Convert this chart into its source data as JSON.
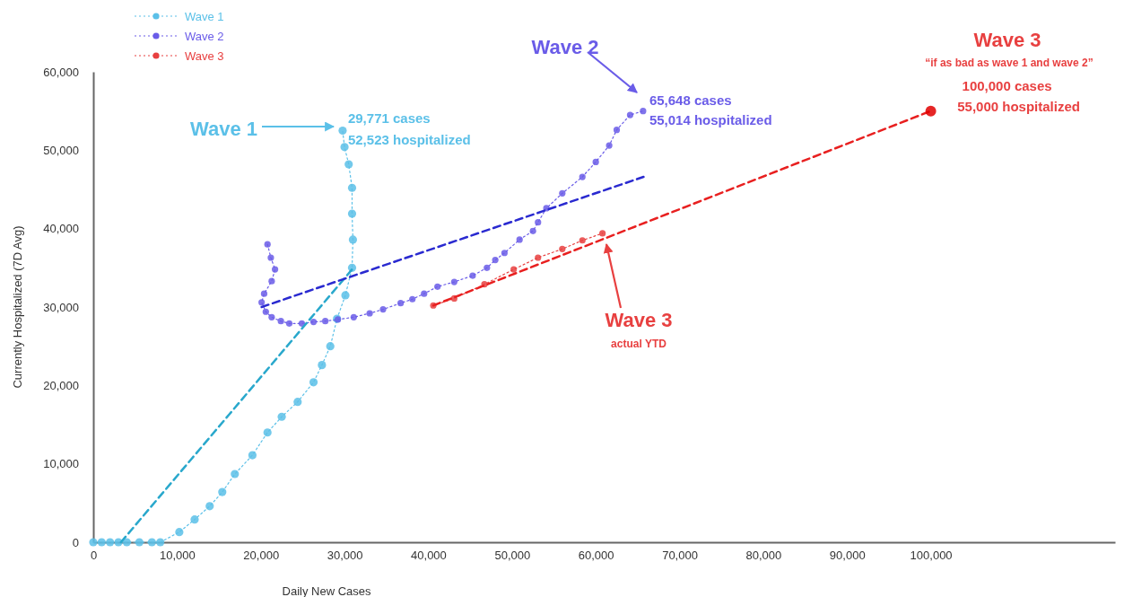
{
  "chart_data": {
    "type": "line",
    "xlabel": "Daily New Cases",
    "ylabel": "Currently Hospitalized (7D Avg)",
    "xlim": [
      0,
      122000
    ],
    "ylim": [
      0,
      60000
    ],
    "xticks": [
      0,
      {
        "value": 10000,
        "label": "10,000"
      },
      {
        "value": 20000,
        "label": "20,000"
      },
      {
        "value": 30000,
        "label": "30,000"
      },
      {
        "value": 40000,
        "label": "40,000"
      },
      {
        "value": 50000,
        "label": "50,000"
      },
      {
        "value": 60000,
        "label": "60,000"
      },
      {
        "value": 70000,
        "label": "70,000"
      },
      {
        "value": 80000,
        "label": "80,000"
      },
      {
        "value": 90000,
        "label": "90,000"
      },
      {
        "value": 100000,
        "label": "100,000"
      }
    ],
    "yticks": [
      0,
      {
        "value": 10000,
        "label": "10,000"
      },
      {
        "value": 20000,
        "label": "20,000"
      },
      {
        "value": 30000,
        "label": "30,000"
      },
      {
        "value": 40000,
        "label": "40,000"
      },
      {
        "value": 50000,
        "label": "50,000"
      },
      {
        "value": 60000,
        "label": "60,000"
      }
    ],
    "legend": "top left",
    "grid": false,
    "series": [
      {
        "name": "Wave 1",
        "color": "#5bc0e8",
        "marker": "circle",
        "line_style": "dotted",
        "x": [
          0,
          1000,
          2000,
          3000,
          4000,
          5500,
          7000,
          8000,
          10270,
          12100,
          13900,
          15400,
          16900,
          19000,
          20800,
          22500,
          24400,
          26300,
          27300,
          28300,
          29100,
          30100,
          30900,
          31000,
          30900,
          30900,
          30500,
          30000,
          29771
        ],
        "values": [
          0,
          0,
          0,
          0,
          0,
          0,
          0,
          0,
          1300,
          2900,
          4600,
          6400,
          8700,
          11100,
          14000,
          16000,
          17900,
          20400,
          22600,
          25000,
          28500,
          31500,
          35000,
          38600,
          41900,
          45200,
          48200,
          50400,
          52500
        ]
      },
      {
        "name": "Wave 2",
        "color": "#6a5ce8",
        "marker": "circle",
        "line_style": "dotted",
        "x": [
          20800,
          21200,
          21700,
          21300,
          20400,
          20100,
          20600,
          21300,
          22400,
          23400,
          24900,
          26300,
          27700,
          29200,
          31100,
          33000,
          34600,
          36700,
          38100,
          39500,
          41100,
          43100,
          45300,
          47000,
          48000,
          49100,
          50900,
          52500,
          53100,
          54100,
          56000,
          58400,
          60000,
          61600,
          62500,
          64100,
          65648
        ],
        "values": [
          38000,
          36300,
          34800,
          33300,
          31700,
          30600,
          29400,
          28700,
          28200,
          27900,
          27900,
          28100,
          28200,
          28400,
          28700,
          29200,
          29700,
          30500,
          31000,
          31700,
          32600,
          33200,
          34000,
          35000,
          36000,
          36900,
          38600,
          39700,
          40800,
          42600,
          44500,
          46600,
          48500,
          50600,
          52600,
          54500,
          55000
        ]
      },
      {
        "name": "Wave 3",
        "color": "#e84040",
        "marker": "circle",
        "line_style": "dotted",
        "x": [
          40600,
          43100,
          46700,
          50200,
          53100,
          56000,
          58400,
          60800
        ],
        "values": [
          30200,
          31100,
          32900,
          34800,
          36300,
          37400,
          38500,
          39400
        ]
      },
      {
        "type": "line",
        "color": "#29a8cc",
        "marker": "none",
        "line_style": "dashed",
        "x": [
          3300,
          30900
        ],
        "values": [
          0,
          34800
        ]
      },
      {
        "type": "line",
        "color": "#2a2ad0",
        "marker": "none",
        "line_style": "dashed",
        "x": [
          20100,
          65700
        ],
        "values": [
          30000,
          46600
        ]
      },
      {
        "type": "line",
        "color": "#e82020",
        "marker": "none",
        "line_style": "dashed",
        "x": [
          40600,
          100000
        ],
        "values": [
          30200,
          55000
        ]
      },
      {
        "type": "scatter",
        "color": "#e00000",
        "marker": "circle",
        "x": [
          100000
        ],
        "values": [
          55000
        ]
      }
    ],
    "annotations": [
      "Wave 1",
      {
        "text": "29,771 cases",
        "x": 29771,
        "y": 52523
      },
      {
        "text": "52,523 hospitalized",
        "x": 29771,
        "y": 52523
      },
      "Wave 2",
      {
        "text": "65,648 cases",
        "x": 65648,
        "y": 55014
      },
      {
        "text": "55,014 hospitalized",
        "x": 65648,
        "y": 55014
      },
      "Wave 3",
      "“if as bad as wave 1 and wave 2”",
      {
        "text": "100,000 cases",
        "x": 100000,
        "y": 55000
      },
      {
        "text": "55,000 hospitalized",
        "x": 100000,
        "y": 55000
      },
      "Wave 3",
      "actual YTD"
    ]
  }
}
